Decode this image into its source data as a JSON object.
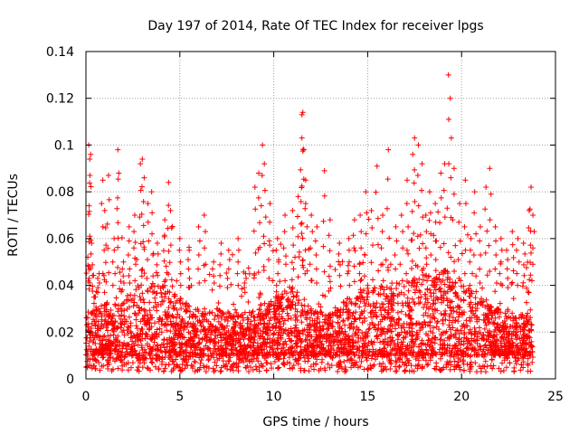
{
  "chart_data": {
    "type": "scatter",
    "title": "Day 197 of 2014, Rate Of TEC Index for receiver lpgs",
    "xlabel": "GPS time / hours",
    "ylabel": "ROTI / TECUs",
    "xlim": [
      0,
      25
    ],
    "ylim": [
      0,
      0.14
    ],
    "xticks": [
      "0",
      "5",
      "10",
      "15",
      "20",
      "25"
    ],
    "yticks": [
      "0",
      "0.02",
      "0.04",
      "0.06",
      "0.08",
      "0.1",
      "0.12",
      "0.14"
    ],
    "grid": true,
    "marker": "+",
    "color": "#ff0000",
    "series": [
      {
        "name": "ROTI",
        "points": [
          [
            0.1,
            0.052
          ],
          [
            0.15,
            0.1
          ],
          [
            0.2,
            0.094
          ],
          [
            0.25,
            0.096
          ],
          [
            0.3,
            0.058
          ],
          [
            0.5,
            0.035
          ],
          [
            0.7,
            0.045
          ],
          [
            0.9,
            0.085
          ],
          [
            1.0,
            0.072
          ],
          [
            1.2,
            0.087
          ],
          [
            1.5,
            0.06
          ],
          [
            1.7,
            0.098
          ],
          [
            1.75,
            0.088
          ],
          [
            2.0,
            0.05
          ],
          [
            2.3,
            0.065
          ],
          [
            2.6,
            0.07
          ],
          [
            2.9,
            0.092
          ],
          [
            3.0,
            0.094
          ],
          [
            3.1,
            0.086
          ],
          [
            3.3,
            0.075
          ],
          [
            3.5,
            0.08
          ],
          [
            3.8,
            0.058
          ],
          [
            4.2,
            0.068
          ],
          [
            4.4,
            0.084
          ],
          [
            4.5,
            0.072
          ],
          [
            5.0,
            0.06
          ],
          [
            5.5,
            0.055
          ],
          [
            6.0,
            0.065
          ],
          [
            6.3,
            0.07
          ],
          [
            6.8,
            0.05
          ],
          [
            7.2,
            0.058
          ],
          [
            7.6,
            0.055
          ],
          [
            8.1,
            0.06
          ],
          [
            8.5,
            0.045
          ],
          [
            9.0,
            0.082
          ],
          [
            9.2,
            0.088
          ],
          [
            9.4,
            0.1
          ],
          [
            9.5,
            0.092
          ],
          [
            9.8,
            0.075
          ],
          [
            10.2,
            0.06
          ],
          [
            10.6,
            0.07
          ],
          [
            11.0,
            0.072
          ],
          [
            11.3,
            0.078
          ],
          [
            11.5,
            0.113
          ],
          [
            11.55,
            0.114
          ],
          [
            11.5,
            0.103
          ],
          [
            11.6,
            0.098
          ],
          [
            11.7,
            0.085
          ],
          [
            12.0,
            0.07
          ],
          [
            12.3,
            0.065
          ],
          [
            12.7,
            0.089
          ],
          [
            13.0,
            0.068
          ],
          [
            13.5,
            0.058
          ],
          [
            14.0,
            0.06
          ],
          [
            14.3,
            0.068
          ],
          [
            14.6,
            0.07
          ],
          [
            14.9,
            0.08
          ],
          [
            15.2,
            0.072
          ],
          [
            15.5,
            0.091
          ],
          [
            15.8,
            0.07
          ],
          [
            16.1,
            0.098
          ],
          [
            16.5,
            0.065
          ],
          [
            16.8,
            0.07
          ],
          [
            17.1,
            0.085
          ],
          [
            17.4,
            0.096
          ],
          [
            17.5,
            0.103
          ],
          [
            17.7,
            0.1
          ],
          [
            17.9,
            0.092
          ],
          [
            18.1,
            0.07
          ],
          [
            18.3,
            0.08
          ],
          [
            18.6,
            0.075
          ],
          [
            18.9,
            0.088
          ],
          [
            19.1,
            0.092
          ],
          [
            19.3,
            0.13
          ],
          [
            19.4,
            0.12
          ],
          [
            19.6,
            0.09
          ],
          [
            19.9,
            0.075
          ],
          [
            20.2,
            0.085
          ],
          [
            20.5,
            0.06
          ],
          [
            20.7,
            0.08
          ],
          [
            21.0,
            0.065
          ],
          [
            21.3,
            0.082
          ],
          [
            21.5,
            0.09
          ],
          [
            21.8,
            0.065
          ],
          [
            22.1,
            0.06
          ],
          [
            22.4,
            0.055
          ],
          [
            22.7,
            0.063
          ],
          [
            23.0,
            0.06
          ],
          [
            23.3,
            0.058
          ],
          [
            23.6,
            0.072
          ],
          [
            23.7,
            0.082
          ],
          [
            23.8,
            0.07
          ]
        ],
        "band": {
          "x_range": [
            0,
            23.8
          ],
          "typical_floor": 0.01,
          "bulk_ceiling_by_hour": [
            [
              0,
              0.03
            ],
            [
              1,
              0.032
            ],
            [
              2,
              0.036
            ],
            [
              3,
              0.04
            ],
            [
              4,
              0.042
            ],
            [
              5,
              0.035
            ],
            [
              6,
              0.03
            ],
            [
              7,
              0.03
            ],
            [
              8,
              0.028
            ],
            [
              9,
              0.03
            ],
            [
              10,
              0.035
            ],
            [
              11,
              0.038
            ],
            [
              12,
              0.03
            ],
            [
              13,
              0.028
            ],
            [
              14,
              0.035
            ],
            [
              15,
              0.04
            ],
            [
              16,
              0.04
            ],
            [
              17,
              0.042
            ],
            [
              18,
              0.045
            ],
            [
              19,
              0.048
            ],
            [
              20,
              0.042
            ],
            [
              21,
              0.035
            ],
            [
              22,
              0.03
            ],
            [
              23,
              0.028
            ],
            [
              23.8,
              0.03
            ]
          ]
        }
      }
    ]
  }
}
